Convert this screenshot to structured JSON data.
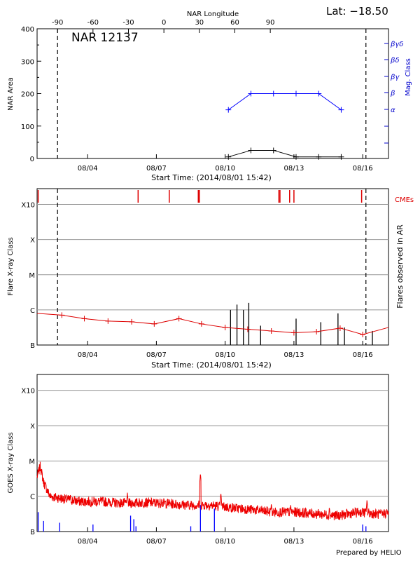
{
  "header": {
    "lat_label": "Lat: −18.50",
    "prepared_by": "Prepared by HELIO"
  },
  "chart_data": [
    {
      "type": "line",
      "id": "nar",
      "title": "NAR 12137",
      "ylabel": "NAR Area",
      "ylabel_right": "Mag. Class",
      "top_axis_label": "NAR Longitude",
      "xlabel": "Start Time: (2014/08/01 15:42)",
      "xlim": [
        0,
        16.35
      ],
      "ylim": [
        0,
        400
      ],
      "yticks": [
        0,
        100,
        200,
        300,
        400
      ],
      "top_ticks": [
        {
          "label": "-90",
          "x": 0.95
        },
        {
          "label": "-60",
          "x": 2.6
        },
        {
          "label": "-30",
          "x": 4.25
        },
        {
          "label": "0",
          "x": 5.9
        },
        {
          "label": "30",
          "x": 7.55
        },
        {
          "label": "60",
          "x": 9.2
        },
        {
          "label": "90",
          "x": 10.85
        }
      ],
      "xticks": [
        {
          "label": "08/04",
          "x": 2.35
        },
        {
          "label": "08/07",
          "x": 5.55
        },
        {
          "label": "08/10",
          "x": 8.75
        },
        {
          "label": "08/13",
          "x": 11.95
        },
        {
          "label": "08/16",
          "x": 15.15
        }
      ],
      "vlines": [
        0.95,
        15.3
      ],
      "right_ticks": [
        {
          "label": "α",
          "level": 0
        },
        {
          "label": "β",
          "level": 1
        },
        {
          "label": "βγ",
          "level": 2
        },
        {
          "label": "βδ",
          "level": 3
        },
        {
          "label": "βγδ",
          "level": 4
        }
      ],
      "series": [
        {
          "name": "area",
          "color": "#000000",
          "x": [
            8.9,
            9.95,
            11.0,
            12.05,
            13.1,
            14.15
          ],
          "y": [
            5,
            25,
            25,
            5,
            5,
            5
          ]
        },
        {
          "name": "mag_class",
          "color": "#0000ff",
          "x": [
            8.9,
            9.95,
            11.0,
            12.05,
            13.1,
            14.15
          ],
          "y": [
            150,
            200,
            200,
            200,
            200,
            150
          ]
        }
      ]
    },
    {
      "type": "line",
      "id": "flares",
      "ylabel": "Flare X-ray Class",
      "ylabel_right": "Flares observed in AR",
      "right_legend": "CMEs",
      "xlabel": "Start Time: (2014/08/01 15:42)",
      "xlim": [
        0,
        16.35
      ],
      "class_ticks": [
        "B",
        "C",
        "M",
        "X",
        "X10"
      ],
      "xticks": [
        {
          "label": "08/04",
          "x": 2.35
        },
        {
          "label": "08/07",
          "x": 5.55
        },
        {
          "label": "08/10",
          "x": 8.75
        },
        {
          "label": "08/13",
          "x": 11.95
        },
        {
          "label": "08/16",
          "x": 15.15
        }
      ],
      "vlines": [
        0.95,
        15.3
      ],
      "cmes": [
        0.05,
        4.7,
        6.15,
        7.5,
        7.55,
        11.25,
        11.3,
        11.75,
        11.95,
        15.1
      ],
      "background": {
        "x": [
          0,
          1.15,
          2.2,
          3.3,
          4.4,
          5.45,
          6.6,
          7.65,
          8.75,
          9.8,
          10.9,
          11.95,
          13.0,
          14.1,
          15.15,
          16.35
        ],
        "y": [
          0.9,
          0.85,
          0.75,
          0.68,
          0.66,
          0.6,
          0.75,
          0.6,
          0.5,
          0.45,
          0.4,
          0.35,
          0.38,
          0.48,
          0.3,
          0.5
        ]
      },
      "markers_x": [
        1.15,
        2.2,
        3.3,
        4.4,
        5.45,
        6.6,
        7.65,
        8.75,
        9.8,
        10.9,
        11.95,
        13.0,
        14.1,
        15.15
      ],
      "flare_bars": [
        {
          "x": 9.0,
          "h": 1.0
        },
        {
          "x": 9.3,
          "h": 1.15
        },
        {
          "x": 9.6,
          "h": 1.0
        },
        {
          "x": 9.85,
          "h": 1.2
        },
        {
          "x": 10.4,
          "h": 0.55
        },
        {
          "x": 12.05,
          "h": 0.75
        },
        {
          "x": 13.2,
          "h": 0.65
        },
        {
          "x": 14.0,
          "h": 0.9
        },
        {
          "x": 14.3,
          "h": 0.5
        },
        {
          "x": 15.6,
          "h": 0.4
        }
      ],
      "colors": {
        "cme": "#dd0000",
        "background": "#dd0000",
        "bars": "#000000"
      }
    },
    {
      "type": "line",
      "id": "goes",
      "ylabel": "GOES X-ray Class",
      "xlim": [
        0,
        16.35
      ],
      "class_ticks": [
        "B",
        "C",
        "M",
        "X",
        "X10"
      ],
      "xticks": [
        {
          "label": "08/04",
          "x": 2.35
        },
        {
          "label": "08/07",
          "x": 5.55
        },
        {
          "label": "08/10",
          "x": 8.75
        },
        {
          "label": "08/13",
          "x": 11.95
        },
        {
          "label": "08/16",
          "x": 15.15
        }
      ],
      "baseline": {
        "x": [
          0,
          0.15,
          0.3,
          0.6,
          1.0,
          2.0,
          3.0,
          4.0,
          5.0,
          6.0,
          7.0,
          8.0,
          9.0,
          10.0,
          11.0,
          12.0,
          13.0,
          14.0,
          15.0,
          15.5,
          16.0,
          16.35
        ],
        "y": [
          1.55,
          1.85,
          1.4,
          1.0,
          0.95,
          0.85,
          0.85,
          0.8,
          0.82,
          0.8,
          0.75,
          0.75,
          0.68,
          0.62,
          0.55,
          0.55,
          0.5,
          0.45,
          0.55,
          0.52,
          0.48,
          0.55
        ]
      },
      "spikes": [
        {
          "x": 1.55,
          "y": 1.05
        },
        {
          "x": 4.2,
          "y": 1.1
        },
        {
          "x": 5.8,
          "y": 0.95
        },
        {
          "x": 7.6,
          "y": 1.65
        },
        {
          "x": 8.55,
          "y": 1.1
        },
        {
          "x": 10.9,
          "y": 0.8
        },
        {
          "x": 11.8,
          "y": 0.78
        },
        {
          "x": 13.6,
          "y": 0.7
        },
        {
          "x": 15.35,
          "y": 0.9
        }
      ],
      "blue_bars": [
        {
          "x": 0.05,
          "h": 0.55
        },
        {
          "x": 0.3,
          "h": 0.3
        },
        {
          "x": 1.05,
          "h": 0.25
        },
        {
          "x": 2.6,
          "h": 0.2
        },
        {
          "x": 4.35,
          "h": 0.45
        },
        {
          "x": 4.5,
          "h": 0.35
        },
        {
          "x": 4.6,
          "h": 0.15
        },
        {
          "x": 7.15,
          "h": 0.15
        },
        {
          "x": 7.6,
          "h": 0.75
        },
        {
          "x": 8.25,
          "h": 0.65
        },
        {
          "x": 15.15,
          "h": 0.2
        },
        {
          "x": 15.3,
          "h": 0.15
        }
      ],
      "colors": {
        "flux": "#ee0000",
        "bars": "#0000ff"
      }
    }
  ]
}
